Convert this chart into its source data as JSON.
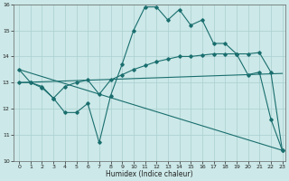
{
  "xlabel": "Humidex (Indice chaleur)",
  "x_ticks": [
    0,
    1,
    2,
    3,
    4,
    5,
    6,
    7,
    8,
    9,
    10,
    11,
    12,
    13,
    14,
    15,
    16,
    17,
    18,
    19,
    20,
    21,
    22,
    23
  ],
  "xlim": [
    -0.5,
    23.3
  ],
  "ylim": [
    10,
    16
  ],
  "y_ticks": [
    10,
    11,
    12,
    13,
    14,
    15,
    16
  ],
  "background_color": "#cce8e8",
  "grid_color": "#aacfcf",
  "line_color": "#1a6e6e",
  "line1_x": [
    0,
    1,
    2,
    3,
    4,
    5,
    6,
    7,
    8,
    9,
    10,
    11,
    12,
    13,
    14,
    15,
    16,
    17,
    18,
    19,
    20,
    21,
    22,
    23
  ],
  "line1_y": [
    13.5,
    13.0,
    12.8,
    12.4,
    11.85,
    11.85,
    12.2,
    10.7,
    12.5,
    13.7,
    15.0,
    15.9,
    15.9,
    15.4,
    15.8,
    15.2,
    15.4,
    14.5,
    14.5,
    14.1,
    13.3,
    13.4,
    11.6,
    10.4
  ],
  "line2_x": [
    0,
    1,
    2,
    3,
    4,
    5,
    6,
    7,
    8,
    9,
    10,
    11,
    12,
    13,
    14,
    15,
    16,
    17,
    18,
    19,
    20,
    21,
    22,
    23
  ],
  "line2_y": [
    13.0,
    13.0,
    12.85,
    12.4,
    12.85,
    13.0,
    13.1,
    12.55,
    13.1,
    13.3,
    13.5,
    13.65,
    13.8,
    13.9,
    14.0,
    14.0,
    14.05,
    14.1,
    14.1,
    14.1,
    14.1,
    14.15,
    13.4,
    10.4
  ],
  "line3_x": [
    0,
    23
  ],
  "line3_y": [
    13.5,
    10.4
  ],
  "line4_x": [
    0,
    23
  ],
  "line4_y": [
    13.0,
    13.35
  ]
}
